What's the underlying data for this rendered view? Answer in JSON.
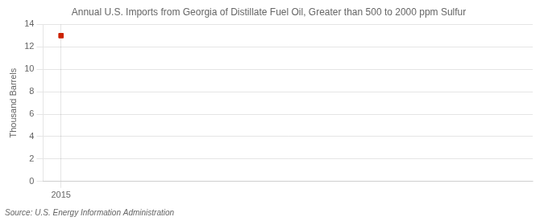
{
  "chart_data": {
    "type": "scatter",
    "title": "Annual U.S. Imports from Georgia of Distillate Fuel Oil, Greater than 500 to 2000 ppm Sulfur",
    "ylabel": "Thousand Barrels",
    "source": "Source: U.S. Energy Information Administration",
    "x": [
      2015
    ],
    "values": [
      13
    ],
    "color": "#cc2200",
    "marker": "square",
    "xlim": [
      2014.6,
      2025.5
    ],
    "xticks": [
      2015
    ],
    "ylim": [
      0,
      14
    ],
    "yticks": [
      0,
      2,
      4,
      6,
      8,
      10,
      12,
      14
    ],
    "grid": true
  }
}
